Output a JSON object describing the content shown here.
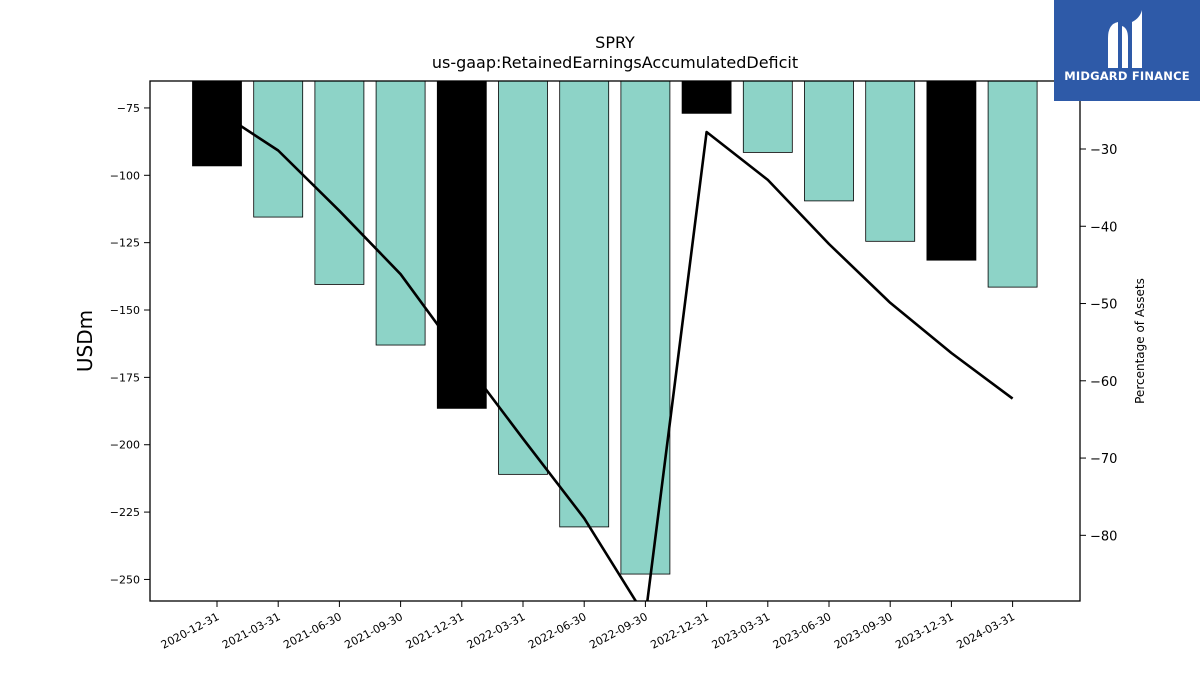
{
  "brand": {
    "name": "MIDGARD FINANCE",
    "color": "#2e5aa8"
  },
  "chart_data": {
    "type": "bar",
    "title": "SPRY",
    "subtitle": "us-gaap:RetainedEarningsAccumulatedDeficit",
    "ylabel": "USDm",
    "y2label": "Percentage of Assets",
    "categories": [
      "2020-12-31",
      "2021-03-31",
      "2021-06-30",
      "2021-09-30",
      "2021-12-31",
      "2022-03-31",
      "2022-06-30",
      "2022-09-30",
      "2022-12-31",
      "2023-03-31",
      "2023-06-30",
      "2023-09-30",
      "2023-12-31",
      "2024-03-31"
    ],
    "series": [
      {
        "axis": "left",
        "type": "bar",
        "values": [
          -96.5,
          -115.5,
          -140.5,
          -163,
          -186.5,
          -211,
          -230.5,
          -248,
          -77,
          -91.5,
          -109.5,
          -124.5,
          -131.5,
          -141.5
        ],
        "colors": [
          "#000000",
          "#8dd3c7",
          "#8dd3c7",
          "#8dd3c7",
          "#000000",
          "#8dd3c7",
          "#8dd3c7",
          "#8dd3c7",
          "#000000",
          "#8dd3c7",
          "#8dd3c7",
          "#8dd3c7",
          "#000000",
          "#8dd3c7"
        ]
      },
      {
        "axis": "right",
        "type": "line",
        "color": "#000000",
        "values": [
          -25,
          -30.2,
          -38,
          -46.2,
          -57,
          -67.5,
          -77.8,
          -90.5,
          -27.8,
          -34,
          -42.3,
          -49.9,
          -56.4,
          -62.3
        ]
      }
    ],
    "ylim": [
      -258,
      -65
    ],
    "y2lim": [
      -88.5,
      -21.2
    ],
    "yticks": [
      -75,
      -100,
      -125,
      -150,
      -175,
      -200,
      -225,
      -250
    ],
    "y2ticks": [
      -30,
      -40,
      -50,
      -60,
      -70,
      -80
    ],
    "grid": false
  }
}
